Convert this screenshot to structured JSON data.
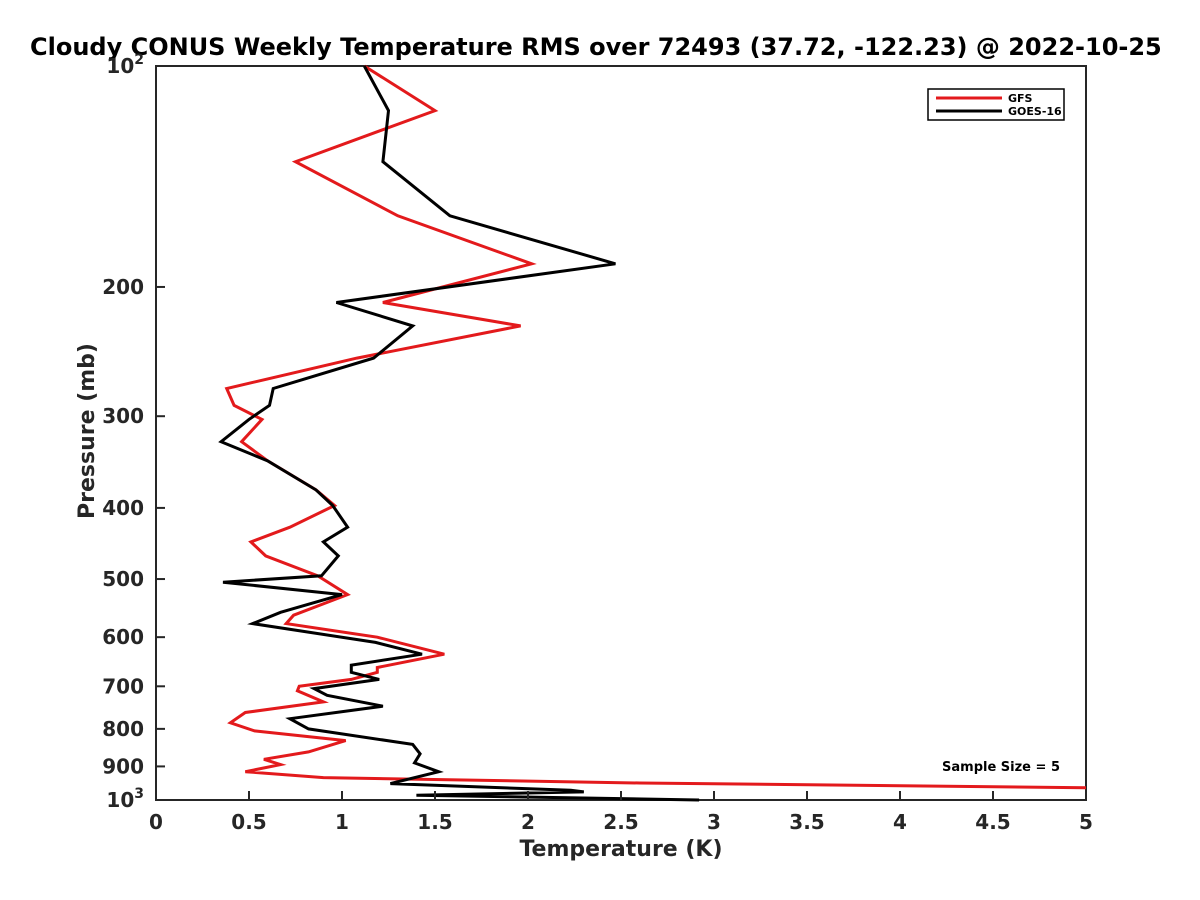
{
  "chart_data": {
    "type": "line",
    "title": "Cloudy CONUS Weekly Temperature RMS over 72493 (37.72, -122.23) @ 2022-10-25",
    "xlabel": "Temperature (K)",
    "ylabel": "Pressure (mb)",
    "xlim": [
      0,
      5
    ],
    "ylim": [
      100,
      1000
    ],
    "y_scale": "log",
    "y_reversed": true,
    "x_ticks": [
      "0",
      "0.5",
      "1",
      "1.5",
      "2",
      "2.5",
      "3",
      "3.5",
      "4",
      "4.5",
      "5"
    ],
    "y_ticks": [
      {
        "value": 100,
        "base": "10",
        "exp": "2"
      },
      {
        "value": 200,
        "label": "200"
      },
      {
        "value": 300,
        "label": "300"
      },
      {
        "value": 400,
        "label": "400"
      },
      {
        "value": 500,
        "label": "500"
      },
      {
        "value": 600,
        "label": "600"
      },
      {
        "value": 700,
        "label": "700"
      },
      {
        "value": 800,
        "label": "800"
      },
      {
        "value": 900,
        "label": "900"
      },
      {
        "value": 1000,
        "base": "10",
        "exp": "3"
      }
    ],
    "grid": false,
    "legend_position": "top-right",
    "annotation": "Sample Size = 5",
    "series": [
      {
        "name": "GFS",
        "color": "#e31a1c",
        "points": [
          [
            1.12,
            100
          ],
          [
            1.5,
            115
          ],
          [
            0.75,
            135
          ],
          [
            1.3,
            160
          ],
          [
            2.02,
            186
          ],
          [
            1.22,
            210
          ],
          [
            1.96,
            226
          ],
          [
            1.08,
            250
          ],
          [
            0.38,
            275
          ],
          [
            0.42,
            290
          ],
          [
            0.57,
            303
          ],
          [
            0.46,
            325
          ],
          [
            0.6,
            345
          ],
          [
            0.86,
            378
          ],
          [
            0.96,
            397
          ],
          [
            0.72,
            425
          ],
          [
            0.51,
            445
          ],
          [
            0.59,
            465
          ],
          [
            0.87,
            495
          ],
          [
            1.03,
            525
          ],
          [
            0.74,
            560
          ],
          [
            0.7,
            575
          ],
          [
            1.19,
            600
          ],
          [
            1.55,
            633
          ],
          [
            1.19,
            660
          ],
          [
            1.19,
            670
          ],
          [
            1.05,
            685
          ],
          [
            0.77,
            700
          ],
          [
            0.76,
            710
          ],
          [
            0.9,
            735
          ],
          [
            0.48,
            760
          ],
          [
            0.4,
            785
          ],
          [
            0.53,
            805
          ],
          [
            1.02,
            830
          ],
          [
            0.82,
            860
          ],
          [
            0.58,
            880
          ],
          [
            0.67,
            895
          ],
          [
            0.48,
            915
          ],
          [
            0.9,
            932
          ],
          [
            2.6,
            948
          ],
          [
            5.0,
            962
          ]
        ]
      },
      {
        "name": "GOES-16",
        "color": "#000000",
        "points": [
          [
            1.12,
            100
          ],
          [
            1.25,
            115
          ],
          [
            1.22,
            135
          ],
          [
            1.58,
            160
          ],
          [
            2.47,
            186
          ],
          [
            0.97,
            210
          ],
          [
            1.38,
            226
          ],
          [
            1.17,
            250
          ],
          [
            0.63,
            275
          ],
          [
            0.61,
            290
          ],
          [
            0.5,
            303
          ],
          [
            0.35,
            325
          ],
          [
            0.6,
            345
          ],
          [
            0.86,
            378
          ],
          [
            0.95,
            397
          ],
          [
            1.03,
            425
          ],
          [
            0.9,
            445
          ],
          [
            0.98,
            465
          ],
          [
            0.89,
            495
          ],
          [
            0.36,
            505
          ],
          [
            1.0,
            525
          ],
          [
            0.67,
            555
          ],
          [
            0.52,
            575
          ],
          [
            1.18,
            610
          ],
          [
            1.43,
            633
          ],
          [
            1.05,
            655
          ],
          [
            1.05,
            670
          ],
          [
            1.2,
            685
          ],
          [
            0.85,
            705
          ],
          [
            0.92,
            720
          ],
          [
            1.22,
            745
          ],
          [
            0.72,
            775
          ],
          [
            0.82,
            800
          ],
          [
            1.38,
            840
          ],
          [
            1.42,
            865
          ],
          [
            1.39,
            890
          ],
          [
            1.52,
            915
          ],
          [
            1.26,
            950
          ],
          [
            2.23,
            970
          ],
          [
            2.3,
            975
          ],
          [
            1.4,
            985
          ],
          [
            2.92,
            1000
          ]
        ]
      }
    ]
  }
}
